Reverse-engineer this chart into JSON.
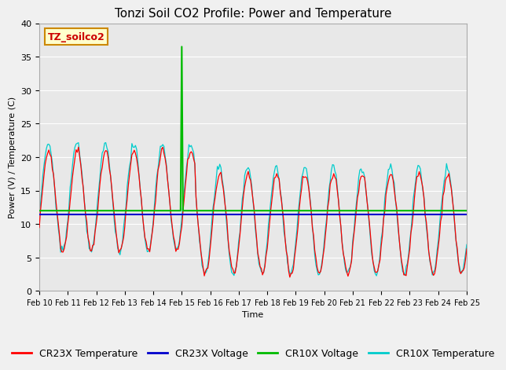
{
  "title": "Tonzi Soil CO2 Profile: Power and Temperature",
  "xlabel": "Time",
  "ylabel": "Power (V) / Temperature (C)",
  "ylim": [
    0,
    40
  ],
  "yticks": [
    0,
    5,
    10,
    15,
    20,
    25,
    30,
    35,
    40
  ],
  "xtick_labels": [
    "Feb 10",
    "Feb 11",
    "Feb 12",
    "Feb 13",
    "Feb 14",
    "Feb 15",
    "Feb 16",
    "Feb 17",
    "Feb 18",
    "Feb 19",
    "Feb 20",
    "Feb 21",
    "Feb 22",
    "Feb 23",
    "Feb 24",
    "Feb 25"
  ],
  "cr23x_voltage_value": 11.4,
  "cr10x_voltage_value": 12.0,
  "cr10x_voltage_spike_value": 36.5,
  "cr10x_voltage_spike_day_idx": 120,
  "annotation_text": "TZ_soilco2",
  "annotation_bg": "#ffffcc",
  "annotation_edge": "#cc8800",
  "colors": {
    "cr23x_temp": "#ff0000",
    "cr23x_voltage": "#0000cc",
    "cr10x_voltage": "#00bb00",
    "cr10x_temp": "#00cccc"
  },
  "legend_labels": [
    "CR23X Temperature",
    "CR23X Voltage",
    "CR10X Voltage",
    "CR10X Temperature"
  ],
  "plot_bg_color": "#e8e8e8",
  "fig_bg_color": "#f0f0f0",
  "title_fontsize": 11,
  "axis_label_fontsize": 8,
  "tick_fontsize": 8,
  "legend_fontsize": 9
}
